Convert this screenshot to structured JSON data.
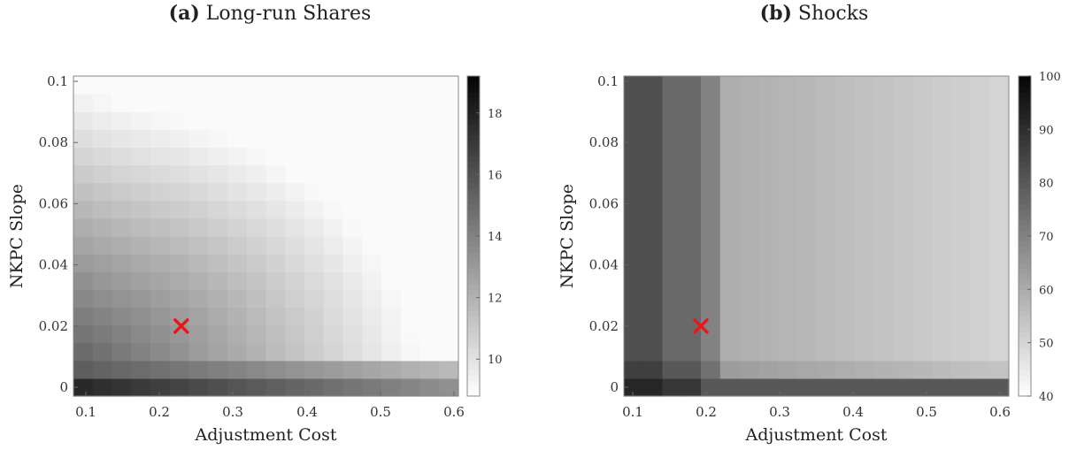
{
  "chart_data": [
    {
      "type": "heatmap",
      "panel_label": "(a)",
      "title": "Long-run Shares",
      "xlabel": "Adjustment Cost",
      "ylabel": "NKPC Slope",
      "xlim": [
        0.1,
        0.6
      ],
      "ylim": [
        0,
        0.1
      ],
      "x_ticks": [
        "0.1",
        "0.2",
        "0.3",
        "0.4",
        "0.5",
        "0.6"
      ],
      "y_ticks": [
        "0",
        "0.02",
        "0.04",
        "0.06",
        "0.08",
        "0.1"
      ],
      "colorbar": {
        "min": 8.8,
        "max": 19.2,
        "ticks": [
          "10",
          "12",
          "14",
          "16",
          "18"
        ],
        "colormap": "gray-reversed"
      },
      "marker": {
        "x": 0.24,
        "y": 0.02,
        "symbol": "x",
        "color": "#e8151b"
      },
      "grid": {
        "nx": 20,
        "ny": 18,
        "x_range": [
          0.1,
          0.6
        ],
        "y_range": [
          0,
          0.1
        ]
      }
    },
    {
      "type": "heatmap",
      "panel_label": "(b)",
      "title": "Shocks",
      "xlabel": "Adjustment Cost",
      "ylabel": "NKPC Slope",
      "xlim": [
        0.1,
        0.6
      ],
      "ylim": [
        0,
        0.1
      ],
      "x_ticks": [
        "0.1",
        "0.2",
        "0.3",
        "0.4",
        "0.5",
        "0.6"
      ],
      "y_ticks": [
        "0",
        "0.02",
        "0.04",
        "0.06",
        "0.08",
        "0.1"
      ],
      "colorbar": {
        "min": 40,
        "max": 100,
        "ticks": [
          "40",
          "50",
          "60",
          "70",
          "80",
          "90",
          "100"
        ],
        "colormap": "gray-reversed"
      },
      "marker": {
        "x": 0.2,
        "y": 0.02,
        "symbol": "x",
        "color": "#e8151b"
      },
      "grid": {
        "nx": 20,
        "ny": 18,
        "x_range": [
          0.1,
          0.6
        ],
        "y_range": [
          0,
          0.1
        ]
      }
    }
  ]
}
